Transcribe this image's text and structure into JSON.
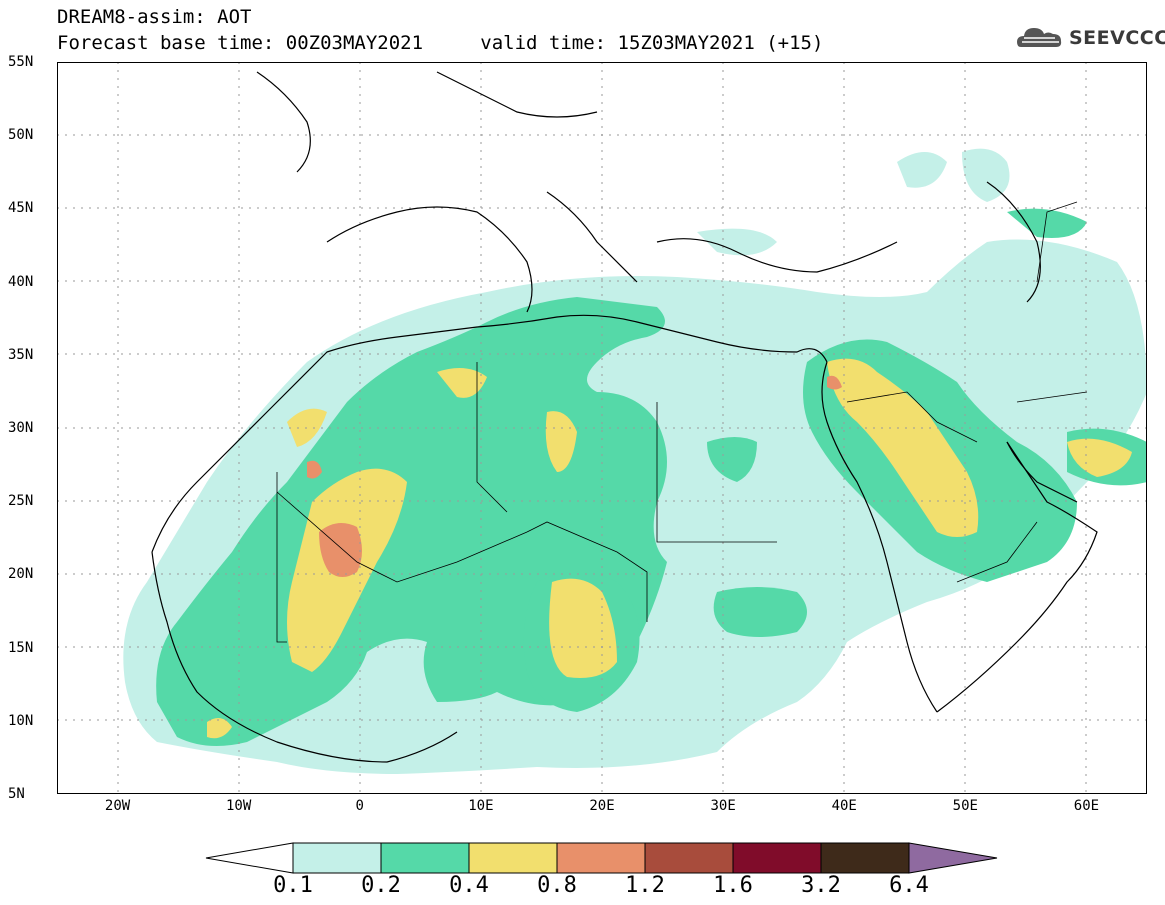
{
  "header": {
    "title_line1": "DREAM8-assim: AOT",
    "base_time_label": "Forecast base time: 00Z03MAY2021",
    "valid_time_label": "valid time: 15Z03MAY2021 (+15)",
    "logo_text": "SEEVCCC"
  },
  "map": {
    "projection": "lat-lon",
    "lon_range": [
      -25,
      65
    ],
    "lat_range": [
      5,
      55
    ],
    "lat_ticks": [
      "55N",
      "50N",
      "45N",
      "40N",
      "35N",
      "30N",
      "25N",
      "20N",
      "15N",
      "10N",
      "5N"
    ],
    "lon_ticks": [
      "20W",
      "10W",
      "0",
      "10E",
      "20E",
      "30E",
      "40E",
      "50E",
      "60E"
    ],
    "gridlines": "dotted"
  },
  "legend": {
    "labels": [
      "0.1",
      "0.2",
      "0.4",
      "0.8",
      "1.2",
      "1.6",
      "3.2",
      "6.4"
    ],
    "colors": [
      "#ffffff",
      "#c4f0e8",
      "#55d9a8",
      "#f2df6e",
      "#e8906a",
      "#a84c3c",
      "#800c2a",
      "#3e2a1a",
      "#8f6aa0"
    ]
  },
  "colors": {
    "land_outline": "#000000",
    "background": "#ffffff"
  }
}
